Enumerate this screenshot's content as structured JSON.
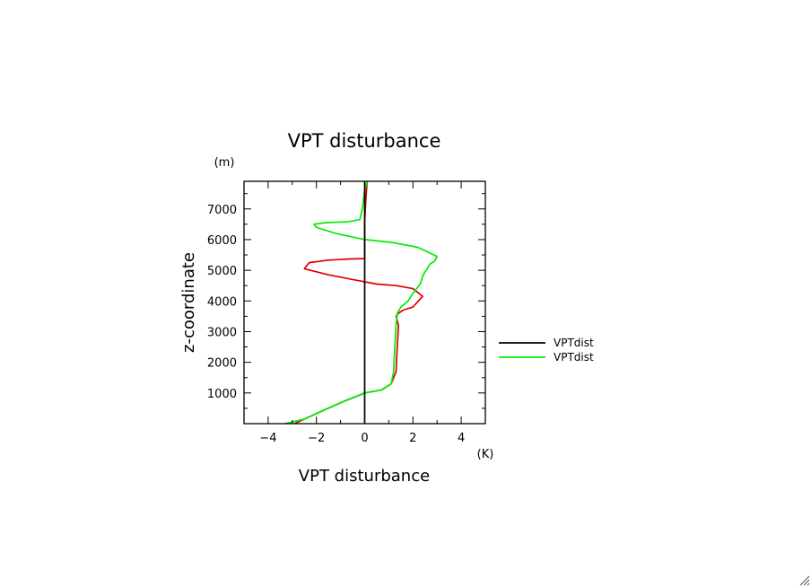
{
  "chart_data": {
    "type": "line",
    "title": "VPT disturbance",
    "xlabel": "VPT disturbance",
    "ylabel": "z-coordinate",
    "x_unit": "(K)",
    "y_unit": "(m)",
    "xlim": [
      -5,
      5
    ],
    "ylim": [
      0,
      7900
    ],
    "x_ticks": [
      -4,
      -2,
      0,
      2,
      4
    ],
    "x_tick_labels": [
      "−4",
      "−2",
      "0",
      "2",
      "4"
    ],
    "y_ticks": [
      1000,
      2000,
      3000,
      4000,
      5000,
      6000,
      7000
    ],
    "y_tick_labels": [
      "1000",
      "2000",
      "3000",
      "4000",
      "5000",
      "6000",
      "7000"
    ],
    "grid": false,
    "legend_position": "right",
    "colors": {
      "black": "#000000",
      "red": "#dd0000",
      "green": "#00ee00"
    },
    "series": [
      {
        "name": "VPTdist",
        "color": "#000000",
        "points": [
          [
            0,
            0
          ],
          [
            0,
            7900
          ]
        ]
      },
      {
        "color": "#dd0000",
        "points": [
          [
            -2.9,
            0
          ],
          [
            -2.5,
            150
          ],
          [
            -1.8,
            400
          ],
          [
            -0.8,
            750
          ],
          [
            -0.3,
            900
          ],
          [
            0,
            1000
          ],
          [
            0.7,
            1100
          ],
          [
            1.1,
            1300
          ],
          [
            1.3,
            1700
          ],
          [
            1.35,
            2500
          ],
          [
            1.4,
            3200
          ],
          [
            1.3,
            3500
          ],
          [
            1.4,
            3600
          ],
          [
            1.6,
            3700
          ],
          [
            2.0,
            3800
          ],
          [
            2.4,
            4150
          ],
          [
            2.0,
            4400
          ],
          [
            1.3,
            4500
          ],
          [
            0.5,
            4550
          ],
          [
            -0.5,
            4700
          ],
          [
            -1.5,
            4850
          ],
          [
            -2.5,
            5050
          ],
          [
            -2.3,
            5250
          ],
          [
            -1.5,
            5330
          ],
          [
            -0.6,
            5370
          ],
          [
            0,
            5380
          ],
          [
            0,
            6000
          ],
          [
            0,
            6600
          ],
          [
            0.05,
            7300
          ],
          [
            0.1,
            7900
          ]
        ]
      },
      {
        "name": "VPTdist",
        "color": "#00ee00",
        "points": [
          [
            -3.3,
            0
          ],
          [
            -2.5,
            150
          ],
          [
            -1.8,
            400
          ],
          [
            -0.8,
            750
          ],
          [
            -0.3,
            900
          ],
          [
            0,
            1000
          ],
          [
            0.7,
            1100
          ],
          [
            1.1,
            1300
          ],
          [
            1.2,
            1700
          ],
          [
            1.25,
            2500
          ],
          [
            1.3,
            3200
          ],
          [
            1.35,
            3600
          ],
          [
            1.5,
            3800
          ],
          [
            1.8,
            4000
          ],
          [
            2.0,
            4250
          ],
          [
            2.3,
            4550
          ],
          [
            2.4,
            4800
          ],
          [
            2.5,
            4950
          ],
          [
            2.6,
            5050
          ],
          [
            2.7,
            5200
          ],
          [
            2.9,
            5300
          ],
          [
            3.0,
            5450
          ],
          [
            2.2,
            5750
          ],
          [
            1.2,
            5900
          ],
          [
            0,
            6000
          ],
          [
            -1.2,
            6200
          ],
          [
            -2.0,
            6400
          ],
          [
            -2.1,
            6500
          ],
          [
            -1.6,
            6550
          ],
          [
            -0.7,
            6580
          ],
          [
            -0.2,
            6650
          ],
          [
            -0.1,
            7000
          ],
          [
            0,
            7600
          ],
          [
            0.1,
            7900
          ]
        ]
      }
    ],
    "legend": [
      {
        "label": "VPTdist",
        "color": "#000000"
      },
      {
        "label": "VPTdist",
        "color": "#00ee00"
      }
    ]
  }
}
